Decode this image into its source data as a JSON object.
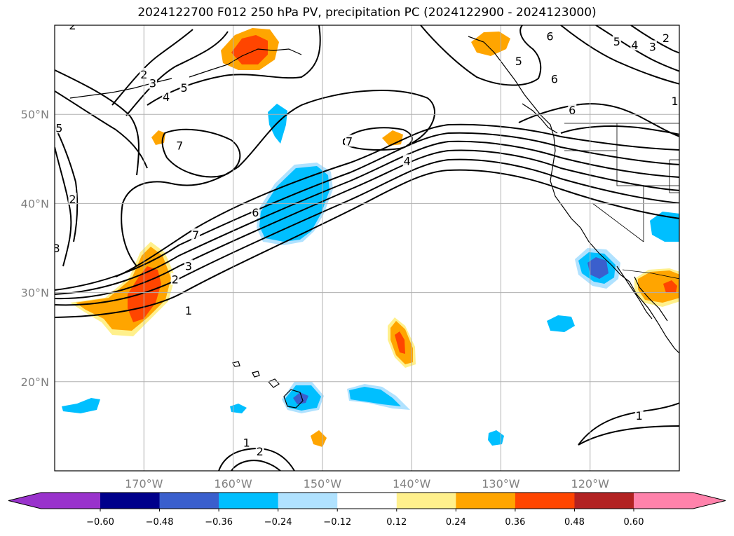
{
  "title": "2024122700 F012 250 hPa PV, precipitation PC (2024122900 - 2024123000)",
  "map": {
    "lon_range": [
      -180,
      -110
    ],
    "lat_range": [
      10,
      60
    ],
    "lat_ticks": [
      {
        "value": 50,
        "label": "50°N"
      },
      {
        "value": 40,
        "label": "40°N"
      },
      {
        "value": 30,
        "label": "30°N"
      },
      {
        "value": 20,
        "label": "20°N"
      }
    ],
    "lon_ticks": [
      {
        "value": -170,
        "label": "170°W"
      },
      {
        "value": -160,
        "label": "160°W"
      },
      {
        "value": -150,
        "label": "150°W"
      },
      {
        "value": -140,
        "label": "140°W"
      },
      {
        "value": -130,
        "label": "130°W"
      },
      {
        "value": -120,
        "label": "120°W"
      }
    ],
    "contour_labels": [
      {
        "text": "1",
        "lon": -165.0,
        "lat": 28.0
      },
      {
        "text": "2",
        "lon": -166.5,
        "lat": 31.5
      },
      {
        "text": "3",
        "lon": -165.0,
        "lat": 33.0
      },
      {
        "text": "4",
        "lon": -140.5,
        "lat": 44.8
      },
      {
        "text": "6",
        "lon": -157.5,
        "lat": 39.0
      },
      {
        "text": "7",
        "lon": -164.2,
        "lat": 36.5
      },
      {
        "text": "7",
        "lon": -166.0,
        "lat": 46.5
      },
      {
        "text": "7",
        "lon": -147.0,
        "lat": 47.0
      },
      {
        "text": "2",
        "lon": -178.0,
        "lat": 40.5
      },
      {
        "text": "3",
        "lon": -179.8,
        "lat": 35.0
      },
      {
        "text": "5",
        "lon": -179.5,
        "lat": 48.5
      },
      {
        "text": "2",
        "lon": -170.0,
        "lat": 54.5
      },
      {
        "text": "3",
        "lon": -169.0,
        "lat": 53.5
      },
      {
        "text": "4",
        "lon": -167.5,
        "lat": 52.0
      },
      {
        "text": "5",
        "lon": -165.5,
        "lat": 53.0
      },
      {
        "text": "5",
        "lon": -128.0,
        "lat": 56.0
      },
      {
        "text": "6",
        "lon": -124.5,
        "lat": 58.8
      },
      {
        "text": "6",
        "lon": -124.0,
        "lat": 54.0
      },
      {
        "text": "6",
        "lon": -122.0,
        "lat": 50.5
      },
      {
        "text": "5",
        "lon": -117.0,
        "lat": 58.2
      },
      {
        "text": "4",
        "lon": -115.0,
        "lat": 57.8
      },
      {
        "text": "3",
        "lon": -113.0,
        "lat": 57.6
      },
      {
        "text": "2",
        "lon": -111.5,
        "lat": 58.6
      },
      {
        "text": "1",
        "lon": -110.5,
        "lat": 51.5
      },
      {
        "text": "1",
        "lon": -114.5,
        "lat": 16.2
      },
      {
        "text": "1",
        "lon": -158.5,
        "lat": 13.2
      },
      {
        "text": "2",
        "lon": -157.0,
        "lat": 12.2
      },
      {
        "text": "2",
        "lon": -178.0,
        "lat": 60.0
      }
    ]
  },
  "colorbar": {
    "boundaries": [
      -0.72,
      -0.6,
      -0.48,
      -0.36,
      -0.24,
      -0.12,
      0.12,
      0.24,
      0.36,
      0.48,
      0.6,
      0.72
    ],
    "colors": [
      "#9932cc",
      "#00008b",
      "#3a5fcd",
      "#00bfff",
      "#b0e2ff",
      "#ffffff",
      "#fff08c",
      "#ffa500",
      "#ff4500",
      "#b22222",
      "#ff82ab"
    ],
    "under_color": "#9932cc",
    "over_color": "#ff82ab",
    "tick_labels": [
      "−0.60",
      "−0.48",
      "−0.36",
      "−0.24",
      "−0.12",
      "0.12",
      "0.24",
      "0.36",
      "0.48",
      "0.60"
    ]
  }
}
